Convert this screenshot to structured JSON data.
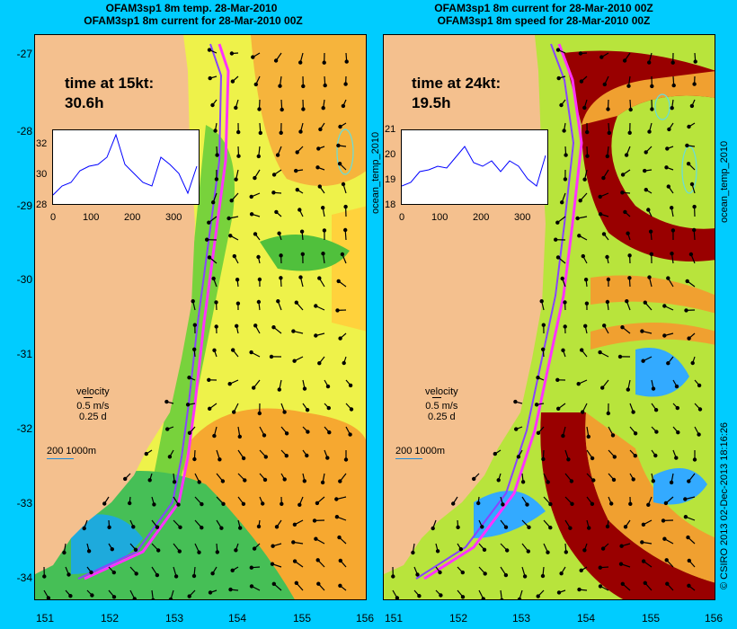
{
  "left_panel": {
    "title_line1": "OFAM3sp1 8m temp. 28-Mar-2010",
    "title_line2": "OFAM3sp1 8m current for 28-Mar-2010 00Z",
    "time_label_1": "time at 15kt:",
    "time_label_2": "30.6h",
    "inset_y_ticks": [
      "32",
      "30",
      "28"
    ],
    "inset_x_ticks": [
      "0",
      "100",
      "200",
      "300"
    ],
    "side_label": "ocean_temp_2010"
  },
  "right_panel": {
    "title_line1": "OFAM3sp1 8m current for 28-Mar-2010 00Z",
    "title_line2": "OFAM3sp1 8m speed for 28-Mar-2010 00Z",
    "time_label_1": "time at 24kt:",
    "time_label_2": "19.5h",
    "inset_y_ticks": [
      "21",
      "20",
      "19",
      "18"
    ],
    "inset_x_ticks": [
      "0",
      "100",
      "200",
      "300"
    ],
    "side_label": "ocean_temp_2010"
  },
  "legend": {
    "velocity": "velocity",
    "speed": "0.5 m/s",
    "duration": "0.25 d",
    "scale": "200  1000m"
  },
  "y_axis_ticks": [
    "-27",
    "-28",
    "-29",
    "-30",
    "-31",
    "-32",
    "-33",
    "-34"
  ],
  "x_axis_ticks_left": [
    "151",
    "152",
    "153",
    "154",
    "155",
    "156"
  ],
  "x_axis_ticks_right": [
    "151",
    "152",
    "153",
    "154",
    "155",
    "156"
  ],
  "credit": "© CSIRO 2013   02-Dec-2013 18:16:26",
  "colors": {
    "background": "#00ccff",
    "land": "#f4c08e",
    "warm_yellow": "#ffff33",
    "green": "#66cc33",
    "orange": "#ff9933",
    "dark_red": "#990000",
    "route": "#ff33ff",
    "blue": "#3399ff"
  }
}
